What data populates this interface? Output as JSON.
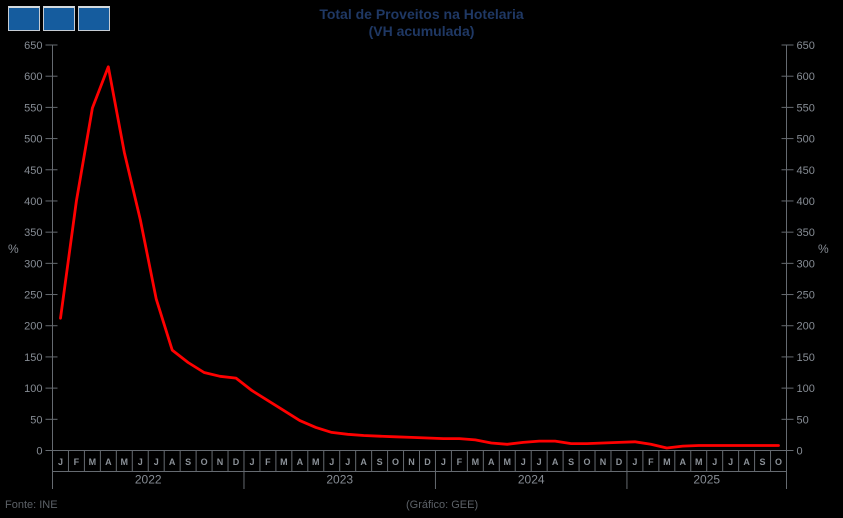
{
  "header": {
    "logo": "three-blue-squares"
  },
  "footer": {
    "source": "Fonte: INE",
    "credit": "(Gráfico: GEE)"
  },
  "chart_data": {
    "type": "line",
    "title": "Total de Proveitos na Hotelaria",
    "subtitle": "(VH acumulada)",
    "ylabel_left": "%",
    "ylabel_right": "%",
    "ylim": [
      0,
      650
    ],
    "yticks": [
      0,
      50,
      100,
      150,
      200,
      250,
      300,
      350,
      400,
      450,
      500,
      550,
      600,
      650
    ],
    "grid": false,
    "legend": "none",
    "line_color": "#ff0000",
    "axis_color": "#656a70",
    "label_color": "#868c94",
    "title_color": "#1f3864",
    "background_color": "#000000",
    "x_groups": [
      {
        "year": "2022",
        "months": [
          "J",
          "F",
          "M",
          "A",
          "M",
          "J",
          "J",
          "A",
          "S",
          "O",
          "N",
          "D"
        ],
        "values": [
          212,
          400,
          549,
          615,
          478,
          370,
          243,
          161,
          141,
          125,
          119,
          116
        ]
      },
      {
        "year": "2023",
        "months": [
          "J",
          "F",
          "M",
          "A",
          "M",
          "J",
          "J",
          "A",
          "S",
          "O",
          "N",
          "D"
        ],
        "values": [
          96,
          80,
          64,
          48,
          37,
          29,
          26,
          24,
          23,
          22,
          21,
          20
        ]
      },
      {
        "year": "2024",
        "months": [
          "J",
          "F",
          "M",
          "A",
          "M",
          "J",
          "J",
          "A",
          "S",
          "O",
          "N",
          "D"
        ],
        "values": [
          19,
          19,
          17,
          12,
          10,
          13,
          15,
          15,
          11,
          11,
          12,
          13
        ]
      },
      {
        "year": "2025",
        "months": [
          "J",
          "F",
          "M",
          "A",
          "M",
          "J",
          "J",
          "A",
          "S",
          "O"
        ],
        "values": [
          14,
          10,
          4,
          7,
          8,
          8,
          8,
          8,
          8,
          8
        ]
      }
    ]
  }
}
